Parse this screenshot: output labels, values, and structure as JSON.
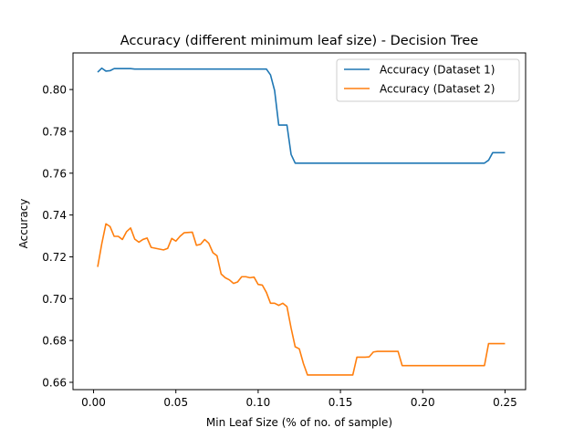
{
  "chart_data": {
    "type": "line",
    "title": "Accuracy (different minimum leaf size) - Decision Tree",
    "xlabel": "Min Leaf Size (% of no. of sample)",
    "ylabel": "Accuracy",
    "xlim": [
      -0.0125,
      0.2625
    ],
    "ylim": [
      0.6565,
      0.8175
    ],
    "xticks": [
      0.0,
      0.05,
      0.1,
      0.15,
      0.2,
      0.25
    ],
    "xtick_labels": [
      "0.00",
      "0.05",
      "0.10",
      "0.15",
      "0.20",
      "0.25"
    ],
    "yticks": [
      0.66,
      0.68,
      0.7,
      0.72,
      0.74,
      0.76,
      0.78,
      0.8
    ],
    "ytick_labels": [
      "0.66",
      "0.68",
      "0.70",
      "0.72",
      "0.74",
      "0.76",
      "0.78",
      "0.80"
    ],
    "grid": false,
    "legend_position": "top-right",
    "series": [
      {
        "name": "Accuracy (Dataset 1)",
        "color": "#1f77b4",
        "points": [
          [
            0.0025,
            0.8083
          ],
          [
            0.005,
            0.8102
          ],
          [
            0.0075,
            0.8088
          ],
          [
            0.01,
            0.809
          ],
          [
            0.0125,
            0.81
          ],
          [
            0.015,
            0.81
          ],
          [
            0.0175,
            0.81
          ],
          [
            0.02,
            0.81
          ],
          [
            0.0225,
            0.81
          ],
          [
            0.025,
            0.8098
          ],
          [
            0.03,
            0.8098
          ],
          [
            0.04,
            0.8098
          ],
          [
            0.05,
            0.8098
          ],
          [
            0.06,
            0.8098
          ],
          [
            0.07,
            0.8098
          ],
          [
            0.08,
            0.8098
          ],
          [
            0.09,
            0.8098
          ],
          [
            0.1,
            0.8098
          ],
          [
            0.105,
            0.8098
          ],
          [
            0.1075,
            0.807
          ],
          [
            0.11,
            0.7995
          ],
          [
            0.1125,
            0.783
          ],
          [
            0.115,
            0.783
          ],
          [
            0.1175,
            0.783
          ],
          [
            0.12,
            0.769
          ],
          [
            0.1225,
            0.7648
          ],
          [
            0.125,
            0.7648
          ],
          [
            0.15,
            0.7648
          ],
          [
            0.175,
            0.7648
          ],
          [
            0.2,
            0.7648
          ],
          [
            0.225,
            0.7648
          ],
          [
            0.2375,
            0.7648
          ],
          [
            0.24,
            0.7662
          ],
          [
            0.2425,
            0.7698
          ],
          [
            0.245,
            0.7698
          ],
          [
            0.25,
            0.7698
          ]
        ]
      },
      {
        "name": "Accuracy (Dataset 2)",
        "color": "#ff7f0e",
        "points": [
          [
            0.0025,
            0.7152
          ],
          [
            0.005,
            0.7263
          ],
          [
            0.0075,
            0.7358
          ],
          [
            0.01,
            0.7345
          ],
          [
            0.0125,
            0.7298
          ],
          [
            0.015,
            0.7298
          ],
          [
            0.0175,
            0.7283
          ],
          [
            0.02,
            0.732
          ],
          [
            0.0225,
            0.7338
          ],
          [
            0.025,
            0.7285
          ],
          [
            0.0275,
            0.727
          ],
          [
            0.03,
            0.7283
          ],
          [
            0.0325,
            0.729
          ],
          [
            0.035,
            0.7245
          ],
          [
            0.04,
            0.7237
          ],
          [
            0.0425,
            0.7233
          ],
          [
            0.045,
            0.724
          ],
          [
            0.0475,
            0.7288
          ],
          [
            0.05,
            0.7275
          ],
          [
            0.0525,
            0.7298
          ],
          [
            0.055,
            0.7315
          ],
          [
            0.06,
            0.7318
          ],
          [
            0.0625,
            0.7255
          ],
          [
            0.065,
            0.726
          ],
          [
            0.0675,
            0.7283
          ],
          [
            0.07,
            0.7265
          ],
          [
            0.0725,
            0.722
          ],
          [
            0.075,
            0.7205
          ],
          [
            0.0775,
            0.7118
          ],
          [
            0.08,
            0.71
          ],
          [
            0.0825,
            0.709
          ],
          [
            0.085,
            0.7073
          ],
          [
            0.0875,
            0.708
          ],
          [
            0.09,
            0.7105
          ],
          [
            0.0925,
            0.7105
          ],
          [
            0.095,
            0.71
          ],
          [
            0.0975,
            0.7103
          ],
          [
            0.1,
            0.7068
          ],
          [
            0.1025,
            0.7065
          ],
          [
            0.105,
            0.703
          ],
          [
            0.1075,
            0.6978
          ],
          [
            0.11,
            0.6978
          ],
          [
            0.1125,
            0.6968
          ],
          [
            0.115,
            0.6978
          ],
          [
            0.1175,
            0.6962
          ],
          [
            0.12,
            0.686
          ],
          [
            0.1225,
            0.677
          ],
          [
            0.125,
            0.676
          ],
          [
            0.1275,
            0.669
          ],
          [
            0.13,
            0.6635
          ],
          [
            0.14,
            0.6635
          ],
          [
            0.15,
            0.6635
          ],
          [
            0.1575,
            0.6635
          ],
          [
            0.16,
            0.672
          ],
          [
            0.165,
            0.672
          ],
          [
            0.1675,
            0.6722
          ],
          [
            0.17,
            0.6745
          ],
          [
            0.1725,
            0.6748
          ],
          [
            0.18,
            0.6748
          ],
          [
            0.1825,
            0.6748
          ],
          [
            0.185,
            0.6748
          ],
          [
            0.1875,
            0.668
          ],
          [
            0.19,
            0.668
          ],
          [
            0.2,
            0.668
          ],
          [
            0.21,
            0.668
          ],
          [
            0.22,
            0.668
          ],
          [
            0.23,
            0.668
          ],
          [
            0.2375,
            0.668
          ],
          [
            0.24,
            0.6785
          ],
          [
            0.245,
            0.6785
          ],
          [
            0.25,
            0.6785
          ]
        ]
      }
    ]
  }
}
